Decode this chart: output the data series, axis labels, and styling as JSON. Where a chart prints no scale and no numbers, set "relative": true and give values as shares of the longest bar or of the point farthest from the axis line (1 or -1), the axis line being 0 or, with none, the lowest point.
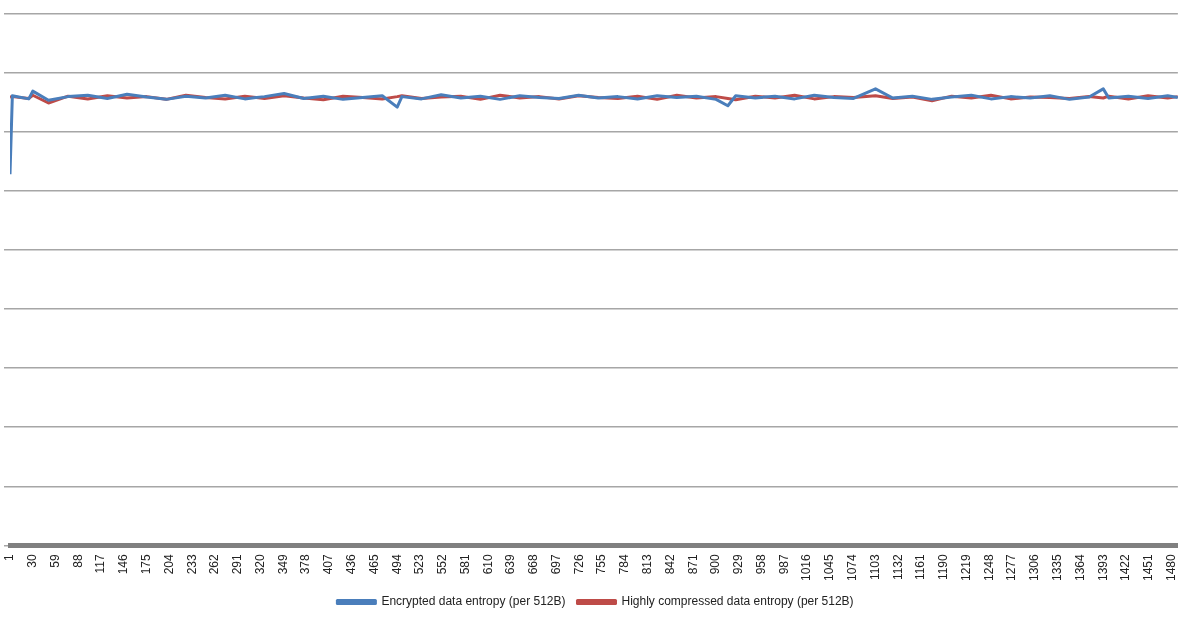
{
  "chart_data": {
    "type": "line",
    "relative": true,
    "grid": "y",
    "legend": "bottom",
    "tick_labels": "x",
    "marker": "none",
    "line_style": "solid",
    "xlim": [
      1,
      1488
    ],
    "xticks": [
      1,
      30,
      59,
      88,
      117,
      146,
      175,
      204,
      233,
      262,
      291,
      320,
      349,
      378,
      407,
      436,
      465,
      494,
      523,
      552,
      581,
      610,
      639,
      668,
      697,
      726,
      755,
      784,
      813,
      842,
      871,
      900,
      929,
      958,
      987,
      1016,
      1045,
      1074,
      1103,
      1132,
      1161,
      1190,
      1219,
      1248,
      1277,
      1306,
      1335,
      1364,
      1393,
      1422,
      1451,
      1480
    ],
    "x": [
      1,
      4,
      25,
      30,
      50,
      75,
      100,
      125,
      150,
      175,
      200,
      225,
      250,
      275,
      300,
      325,
      350,
      375,
      400,
      425,
      450,
      475,
      494,
      500,
      525,
      550,
      575,
      600,
      625,
      650,
      675,
      700,
      725,
      750,
      775,
      800,
      825,
      850,
      875,
      900,
      915,
      925,
      950,
      975,
      1000,
      1025,
      1050,
      1075,
      1103,
      1125,
      1150,
      1175,
      1200,
      1225,
      1250,
      1275,
      1300,
      1325,
      1350,
      1375,
      1393,
      1400,
      1425,
      1450,
      1475,
      1488
    ],
    "series": [
      {
        "name": "Encrypted data entropy (per 512B)",
        "color": "#4a7ebb",
        "values": [
          0.813,
          0.985,
          0.978,
          0.995,
          0.975,
          0.983,
          0.986,
          0.979,
          0.988,
          0.982,
          0.977,
          0.984,
          0.98,
          0.986,
          0.978,
          0.983,
          0.99,
          0.979,
          0.984,
          0.977,
          0.981,
          0.985,
          0.96,
          0.983,
          0.978,
          0.987,
          0.98,
          0.984,
          0.977,
          0.985,
          0.981,
          0.979,
          0.986,
          0.98,
          0.983,
          0.978,
          0.985,
          0.981,
          0.984,
          0.977,
          0.963,
          0.985,
          0.98,
          0.984,
          0.978,
          0.986,
          0.981,
          0.979,
          1,
          0.98,
          0.984,
          0.977,
          0.982,
          0.986,
          0.978,
          0.983,
          0.98,
          0.985,
          0.977,
          0.982,
          1,
          0.98,
          0.984,
          0.979,
          0.985,
          0.981
        ]
      },
      {
        "name": "Highly compressed data entropy (per 512B)",
        "color": "#be4b48",
        "values": [
          0.982,
          0.983,
          0.979,
          0.986,
          0.969,
          0.984,
          0.978,
          0.985,
          0.98,
          0.983,
          0.977,
          0.986,
          0.981,
          0.978,
          0.984,
          0.979,
          0.985,
          0.98,
          0.976,
          0.984,
          0.981,
          0.978,
          0.983,
          0.985,
          0.979,
          0.982,
          0.984,
          0.977,
          0.986,
          0.98,
          0.983,
          0.978,
          0.985,
          0.981,
          0.979,
          0.984,
          0.977,
          0.986,
          0.98,
          0.983,
          0.979,
          0.976,
          0.984,
          0.98,
          0.986,
          0.978,
          0.983,
          0.981,
          0.985,
          0.979,
          0.982,
          0.974,
          0.984,
          0.98,
          0.986,
          0.978,
          0.982,
          0.981,
          0.979,
          0.983,
          0.98,
          0.984,
          0.978,
          0.985,
          0.98,
          0.983
        ]
      }
    ]
  }
}
